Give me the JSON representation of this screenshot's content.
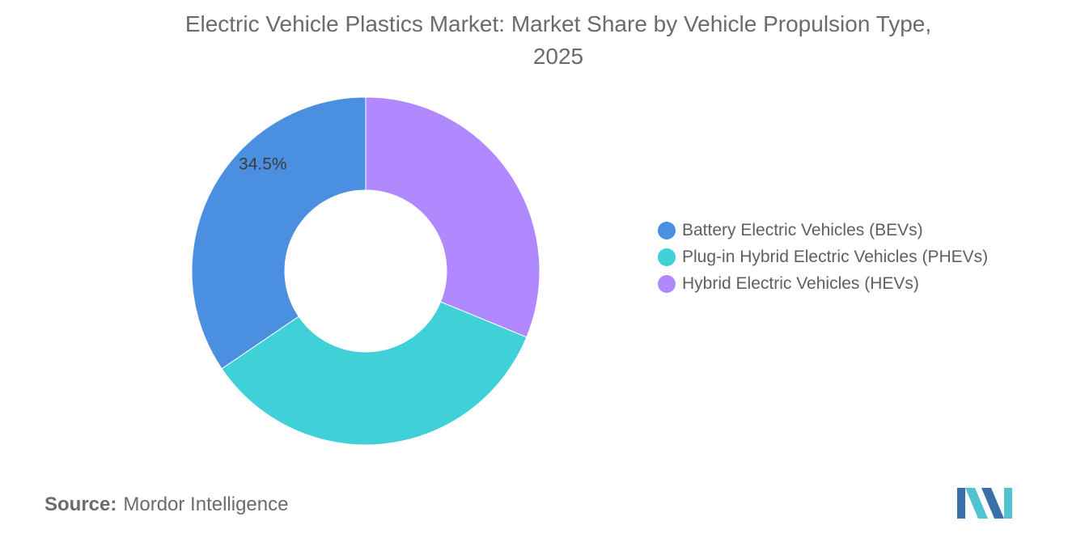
{
  "chart_data": {
    "type": "pie",
    "title": "Electric Vehicle Plastics Market: Market Share by Vehicle Propulsion Type, 2025",
    "title_lines": [
      "Electric Vehicle Plastics Market: Market Share by Vehicle Propulsion Type,",
      "2025"
    ],
    "donut": true,
    "categories": [
      "Battery Electric Vehicles (BEVs)",
      "Plug-in Hybrid Electric Vehicles (PHEVs)",
      "Hybrid Electric Vehicles (HEVs)"
    ],
    "values": [
      34.5,
      34.3,
      31.2
    ],
    "colors": [
      "#4A8FE0",
      "#40D0D8",
      "#B088FF"
    ],
    "data_labels": [
      "34.5%",
      "",
      ""
    ],
    "legend_position": "right"
  },
  "source": {
    "label": "Source:",
    "text": "Mordor Intelligence"
  },
  "logo": {
    "icon": "mordor-intelligence-logo-icon",
    "colors": [
      "#3B6FA8",
      "#4FC3D0"
    ]
  }
}
